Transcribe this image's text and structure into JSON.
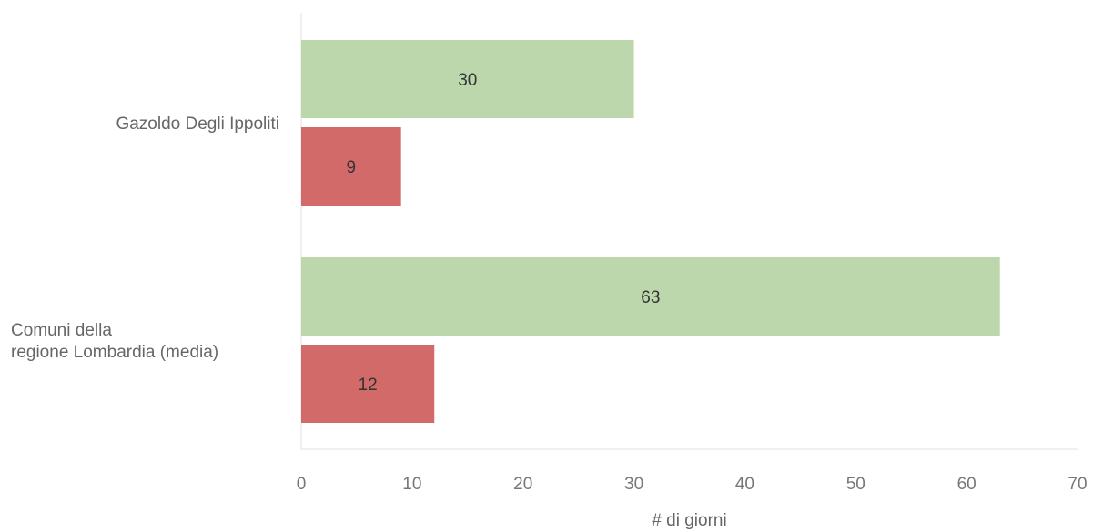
{
  "chart_data": {
    "type": "bar",
    "orientation": "horizontal",
    "categories": [
      "Gazoldo Degli Ippoliti",
      "Comuni della regione Lombardia (media)"
    ],
    "category_lines": [
      [
        "Gazoldo Degli Ippoliti"
      ],
      [
        "Comuni della",
        "regione Lombardia (media)"
      ]
    ],
    "series": [
      {
        "values": [
          30,
          63
        ],
        "color": "#bdd7ad"
      },
      {
        "values": [
          9,
          12
        ],
        "color": "#d26a69"
      }
    ],
    "xlabel": "# di giorni",
    "ylabel": "",
    "xlim": [
      0,
      70
    ],
    "xticks": [
      "0",
      "10",
      "20",
      "30",
      "40",
      "50",
      "60",
      "70"
    ],
    "grid": false,
    "data_labels": true
  }
}
